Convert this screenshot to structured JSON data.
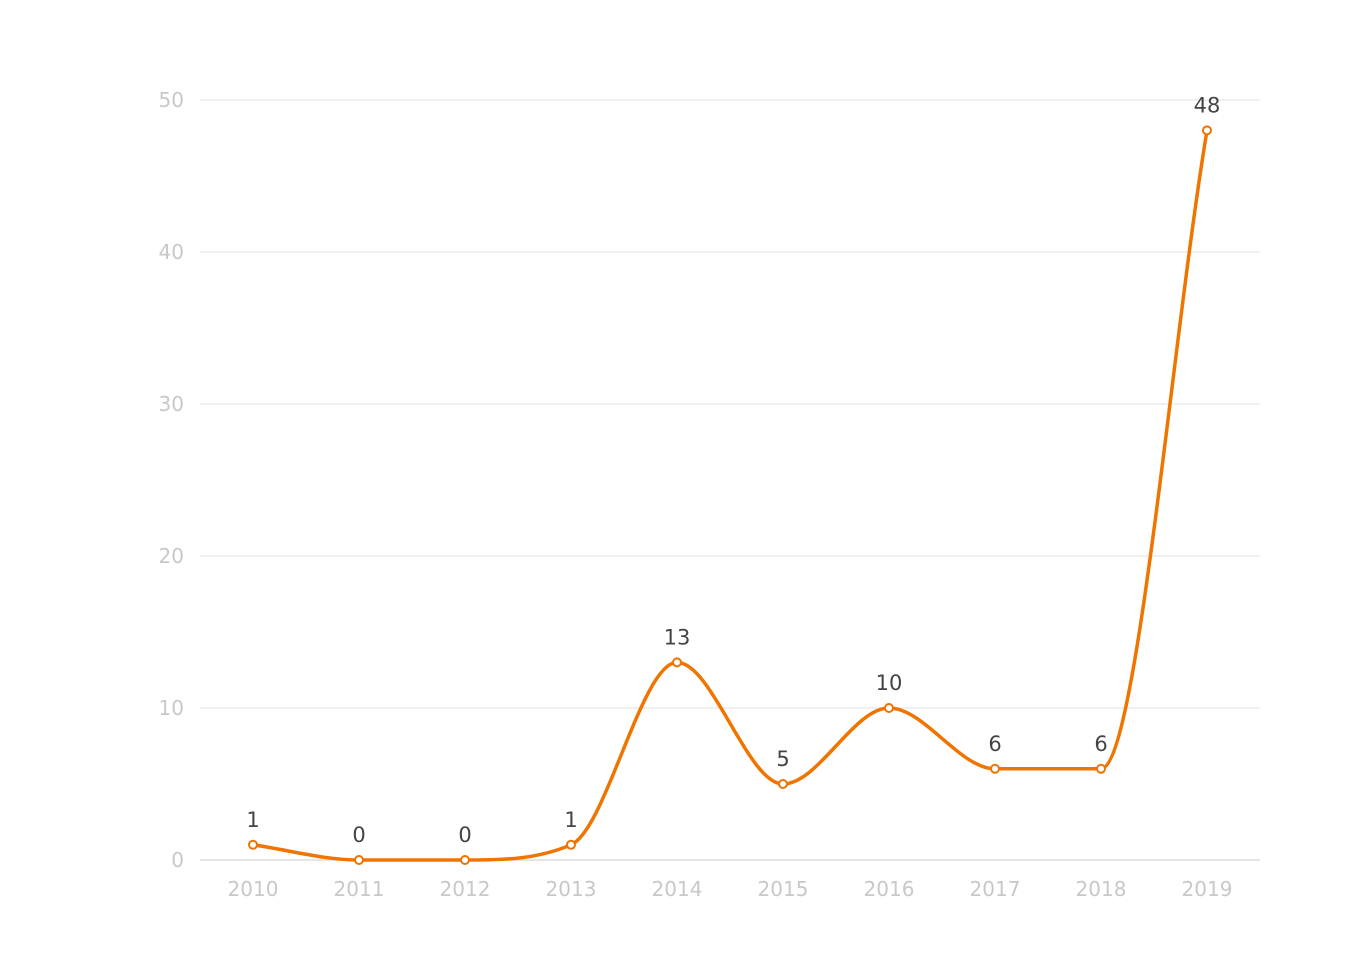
{
  "chart_data": {
    "type": "line",
    "smooth": true,
    "categories": [
      "2010",
      "2011",
      "2012",
      "2013",
      "2014",
      "2015",
      "2016",
      "2017",
      "2018",
      "2019"
    ],
    "series": [
      {
        "values": [
          1,
          0,
          0,
          1,
          13,
          5,
          10,
          6,
          6,
          48
        ],
        "color": "#f07400"
      }
    ],
    "ylim": [
      0,
      50
    ],
    "yticks": [
      0,
      10,
      20,
      30,
      40,
      50
    ],
    "grid": true,
    "data_labels": true,
    "colors": {
      "line": "#f07400",
      "marker_fill": "#ffffff",
      "grid": "#ececec",
      "tick_label": "#c8c8c8",
      "data_label": "#444444"
    }
  }
}
